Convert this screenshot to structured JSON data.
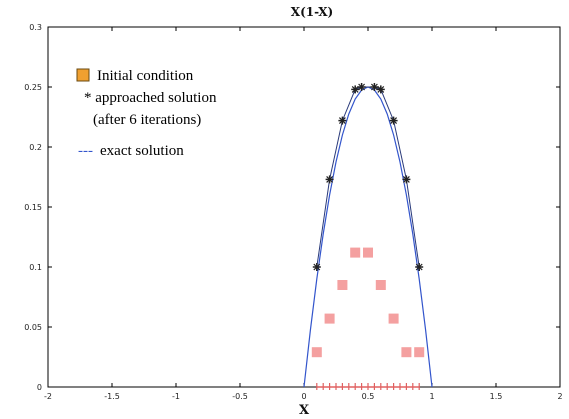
{
  "chart_data": {
    "type": "line",
    "title": "X(1-X)",
    "xlabel": "X",
    "ylabel": "",
    "xlim": [
      -2,
      2
    ],
    "ylim": [
      0,
      0.3
    ],
    "xticks": [
      "-2",
      "-1.5",
      "-1",
      "-0.5",
      "0",
      "0.5",
      "1",
      "1.5",
      "2"
    ],
    "yticks": [
      "0",
      "0.05",
      "0.1",
      "0.15",
      "0.2",
      "0.25",
      "0.3"
    ],
    "grid": false,
    "legend_placement": "top-left",
    "legend": {
      "initial": "Initial condition",
      "approached_line1": "* approached solution",
      "approached_line2": "(after 6 iterations)",
      "exact_prefix": "---",
      "exact_text": "exact solution"
    },
    "series": [
      {
        "kind": "exact",
        "style": "curve",
        "color": "#3355cc",
        "x": [
          0,
          0.05,
          0.1,
          0.15,
          0.2,
          0.25,
          0.3,
          0.35,
          0.4,
          0.45,
          0.5,
          0.55,
          0.6,
          0.65,
          0.7,
          0.75,
          0.8,
          0.85,
          0.9,
          0.95,
          1.0
        ],
        "y": [
          0,
          0.0475,
          0.09,
          0.1275,
          0.16,
          0.1875,
          0.21,
          0.2275,
          0.24,
          0.2475,
          0.25,
          0.2475,
          0.24,
          0.2275,
          0.21,
          0.1875,
          0.16,
          0.1275,
          0.09,
          0.0475,
          0
        ]
      },
      {
        "kind": "approached",
        "style": "star-line",
        "color": "#222222",
        "x": [
          0.1,
          0.2,
          0.3,
          0.4,
          0.45,
          0.55,
          0.6,
          0.7,
          0.8,
          0.9
        ],
        "y": [
          0.1,
          0.173,
          0.222,
          0.248,
          0.25,
          0.25,
          0.248,
          0.222,
          0.173,
          0.1
        ]
      },
      {
        "kind": "initial",
        "style": "square",
        "color": "#f4a0a0",
        "x": [
          0.1,
          0.2,
          0.3,
          0.4,
          0.5,
          0.6,
          0.7,
          0.8,
          0.9
        ],
        "y": [
          0.029,
          0.057,
          0.085,
          0.112,
          0.112,
          0.085,
          0.057,
          0.029,
          0.029
        ]
      },
      {
        "kind": "grid-points",
        "style": "plus",
        "color": "#e06060",
        "x": [
          0.1,
          0.15,
          0.2,
          0.25,
          0.3,
          0.35,
          0.4,
          0.45,
          0.5,
          0.55,
          0.6,
          0.65,
          0.7,
          0.75,
          0.8,
          0.85,
          0.9
        ],
        "y": [
          0,
          0,
          0,
          0,
          0,
          0,
          0,
          0,
          0,
          0,
          0,
          0,
          0,
          0,
          0,
          0,
          0
        ]
      }
    ],
    "colors": {
      "legend_square": "#f0a030",
      "exact_line": "#3355cc"
    }
  }
}
